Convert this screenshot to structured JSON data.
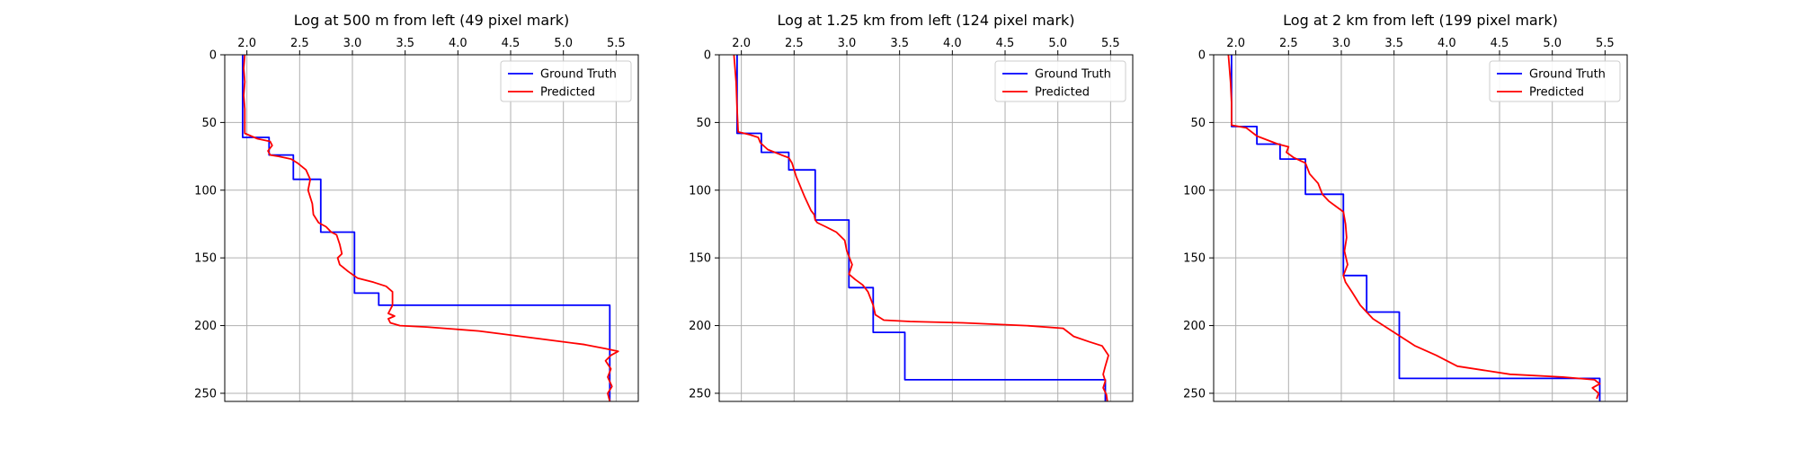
{
  "chart_data": [
    {
      "type": "line",
      "title": "Log at 500 m from left (49 pixel mark)",
      "x_ticks": [
        "2.0",
        "2.5",
        "3.0",
        "3.5",
        "4.0",
        "4.5",
        "5.0",
        "5.5"
      ],
      "y_ticks": [
        "0",
        "50",
        "100",
        "150",
        "200",
        "250"
      ],
      "xlim": [
        1.79,
        5.71
      ],
      "ylim": [
        256,
        0
      ],
      "x_axis_position": "top",
      "grid": true,
      "legend_position": "top-right",
      "series": [
        {
          "name": "Ground Truth",
          "color": "#0000ff",
          "x": [
            1.96,
            1.96,
            2.21,
            2.21,
            2.44,
            2.44,
            2.7,
            2.7,
            3.02,
            3.02,
            3.25,
            3.25,
            5.44,
            5.44
          ],
          "y": [
            0,
            61,
            61,
            74,
            74,
            92,
            92,
            131,
            131,
            176,
            176,
            185,
            185,
            256
          ]
        },
        {
          "name": "Predicted",
          "color": "#ff0000",
          "x": [
            1.98,
            1.97,
            1.98,
            1.97,
            1.98,
            1.98,
            2.1,
            2.22,
            2.24,
            2.2,
            2.22,
            2.3,
            2.42,
            2.48,
            2.56,
            2.6,
            2.58,
            2.62,
            2.63,
            2.68,
            2.75,
            2.8,
            2.85,
            2.88,
            2.9,
            2.86,
            2.88,
            2.96,
            3.05,
            3.2,
            3.32,
            3.38,
            3.38,
            3.34,
            3.4,
            3.34,
            3.36,
            3.45,
            3.7,
            4.2,
            4.8,
            5.2,
            5.4,
            5.52,
            5.45,
            5.4,
            5.45,
            5.42,
            5.46,
            5.42,
            5.44
          ],
          "y": [
            0,
            10,
            20,
            30,
            40,
            58,
            62,
            64,
            67,
            71,
            74,
            75,
            77,
            80,
            85,
            92,
            100,
            110,
            118,
            124,
            127,
            131,
            133,
            140,
            147,
            150,
            155,
            160,
            165,
            168,
            171,
            175,
            185,
            191,
            193,
            195,
            198,
            200,
            201,
            204,
            210,
            214,
            217,
            219,
            222,
            226,
            232,
            238,
            245,
            250,
            256
          ]
        }
      ]
    },
    {
      "type": "line",
      "title": "Log at 1.25 km from left (124 pixel mark)",
      "x_ticks": [
        "2.0",
        "2.5",
        "3.0",
        "3.5",
        "4.0",
        "4.5",
        "5.0",
        "5.5"
      ],
      "y_ticks": [
        "0",
        "50",
        "100",
        "150",
        "200",
        "250"
      ],
      "xlim": [
        1.79,
        5.71
      ],
      "ylim": [
        256,
        0
      ],
      "x_axis_position": "top",
      "grid": true,
      "legend_position": "top-right",
      "series": [
        {
          "name": "Ground Truth",
          "color": "#0000ff",
          "x": [
            1.96,
            1.96,
            2.19,
            2.19,
            2.45,
            2.45,
            2.7,
            2.7,
            3.02,
            3.02,
            3.25,
            3.25,
            3.55,
            3.55,
            5.45,
            5.45
          ],
          "y": [
            0,
            58,
            58,
            72,
            72,
            85,
            85,
            122,
            122,
            172,
            172,
            205,
            205,
            240,
            240,
            256
          ]
        },
        {
          "name": "Predicted",
          "color": "#ff0000",
          "x": [
            1.93,
            1.94,
            1.95,
            1.96,
            1.97,
            2.08,
            2.16,
            2.18,
            2.25,
            2.38,
            2.45,
            2.48,
            2.52,
            2.6,
            2.66,
            2.69,
            2.7,
            2.72,
            2.8,
            2.9,
            2.98,
            3.0,
            3.05,
            3.02,
            3.08,
            3.15,
            3.2,
            3.25,
            3.27,
            3.35,
            3.6,
            4.1,
            4.7,
            5.05,
            5.15,
            5.3,
            5.42,
            5.48,
            5.45,
            5.43,
            5.45,
            5.43,
            5.46,
            5.47
          ],
          "y": [
            0,
            10,
            20,
            40,
            57,
            59,
            61,
            65,
            70,
            74,
            76,
            80,
            90,
            105,
            115,
            118,
            122,
            124,
            127,
            131,
            137,
            145,
            155,
            162,
            166,
            170,
            175,
            185,
            192,
            196,
            197,
            198,
            200,
            202,
            208,
            212,
            215,
            222,
            230,
            236,
            241,
            246,
            251,
            256
          ]
        }
      ]
    },
    {
      "type": "line",
      "title": "Log at 2 km from left (199 pixel mark)",
      "x_ticks": [
        "2.0",
        "2.5",
        "3.0",
        "3.5",
        "4.0",
        "4.5",
        "5.0",
        "5.5"
      ],
      "y_ticks": [
        "0",
        "50",
        "100",
        "150",
        "200",
        "250"
      ],
      "xlim": [
        1.79,
        5.71
      ],
      "ylim": [
        256,
        0
      ],
      "x_axis_position": "top",
      "grid": true,
      "legend_position": "top-right",
      "series": [
        {
          "name": "Ground Truth",
          "color": "#0000ff",
          "x": [
            1.96,
            1.96,
            2.2,
            2.2,
            2.42,
            2.42,
            2.66,
            2.66,
            3.02,
            3.02,
            3.24,
            3.24,
            3.55,
            3.55,
            5.45,
            5.45
          ],
          "y": [
            0,
            53,
            53,
            66,
            66,
            77,
            77,
            103,
            103,
            163,
            163,
            190,
            190,
            239,
            239,
            256
          ]
        },
        {
          "name": "Predicted",
          "color": "#ff0000",
          "x": [
            1.93,
            1.94,
            1.95,
            1.96,
            1.96,
            2.1,
            2.2,
            2.4,
            2.5,
            2.48,
            2.55,
            2.66,
            2.7,
            2.78,
            2.82,
            2.88,
            2.95,
            3.02,
            3.04,
            3.05,
            3.03,
            3.06,
            3.02,
            3.04,
            3.1,
            3.18,
            3.3,
            3.5,
            3.7,
            3.9,
            4.1,
            4.6,
            5.1,
            5.4,
            5.45,
            5.38,
            5.44,
            5.42
          ],
          "y": [
            0,
            10,
            20,
            35,
            52,
            54,
            60,
            66,
            68,
            72,
            76,
            80,
            88,
            95,
            103,
            108,
            112,
            116,
            125,
            135,
            145,
            155,
            163,
            168,
            175,
            185,
            195,
            205,
            215,
            222,
            230,
            236,
            238,
            240,
            243,
            246,
            250,
            254
          ]
        }
      ]
    }
  ]
}
